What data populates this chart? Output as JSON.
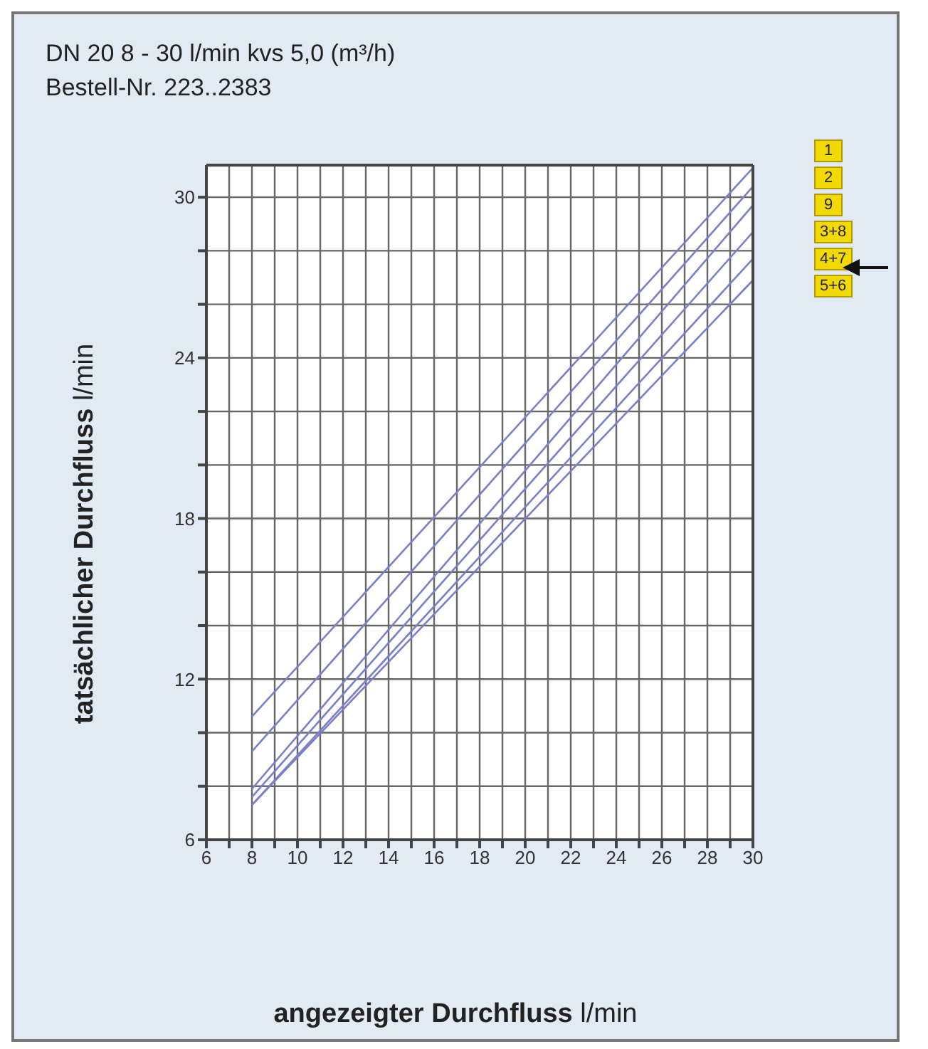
{
  "chart_data": {
    "type": "line",
    "title": "DN 20   8 - 30 l/min   kvs   5,0 (m³/h)",
    "subtitle": "Bestell-Nr. 223..2383",
    "xlabel": "angezeigter Durchfluss l/min",
    "ylabel": "tatsächlicher Durchfluss l/min",
    "x": [
      8,
      30
    ],
    "series": [
      {
        "name": "1",
        "color": "#7a7fc8",
        "values": [
          10.6,
          31.1
        ]
      },
      {
        "name": "2",
        "color": "#7a7fc8",
        "values": [
          9.3,
          30.4
        ]
      },
      {
        "name": "9",
        "color": "#7a7fc8",
        "values": [
          7.9,
          29.7
        ]
      },
      {
        "name": "3+8",
        "color": "#7a7fc8",
        "values": [
          7.6,
          28.7
        ]
      },
      {
        "name": "4+7",
        "color": "#7a7fc8",
        "values": [
          7.3,
          27.7
        ]
      },
      {
        "name": "5+6",
        "color": "#7a7fc8",
        "values": [
          7.3,
          26.9
        ]
      }
    ],
    "xlim": [
      6,
      30
    ],
    "xticks": [
      6,
      {
        "value": 7,
        "label": null
      },
      8,
      {
        "value": 9,
        "label": null
      },
      10,
      {
        "value": 11,
        "label": null
      },
      12,
      {
        "value": 13,
        "label": null
      },
      14,
      {
        "value": 15,
        "label": null
      },
      16,
      {
        "value": 17,
        "label": null
      },
      18,
      {
        "value": 19,
        "label": null
      },
      20,
      {
        "value": 21,
        "label": null
      },
      22,
      {
        "value": 23,
        "label": null
      },
      24,
      {
        "value": 25,
        "label": null
      },
      26,
      {
        "value": 27,
        "label": null
      },
      28,
      {
        "value": 29,
        "label": null
      },
      30
    ],
    "ylim": [
      6,
      31.2
    ],
    "yticks": [
      6,
      {
        "value": 8,
        "label": null
      },
      {
        "value": 10,
        "label": null
      },
      12,
      {
        "value": 14,
        "label": null
      },
      {
        "value": 16,
        "label": null
      },
      18,
      {
        "value": 20,
        "label": null
      },
      {
        "value": 22,
        "label": null
      },
      24,
      {
        "value": 26,
        "label": null
      },
      {
        "value": 28,
        "label": null
      },
      30
    ],
    "grid": true,
    "legend": "top right",
    "marker": "none",
    "line_style": "solid"
  }
}
